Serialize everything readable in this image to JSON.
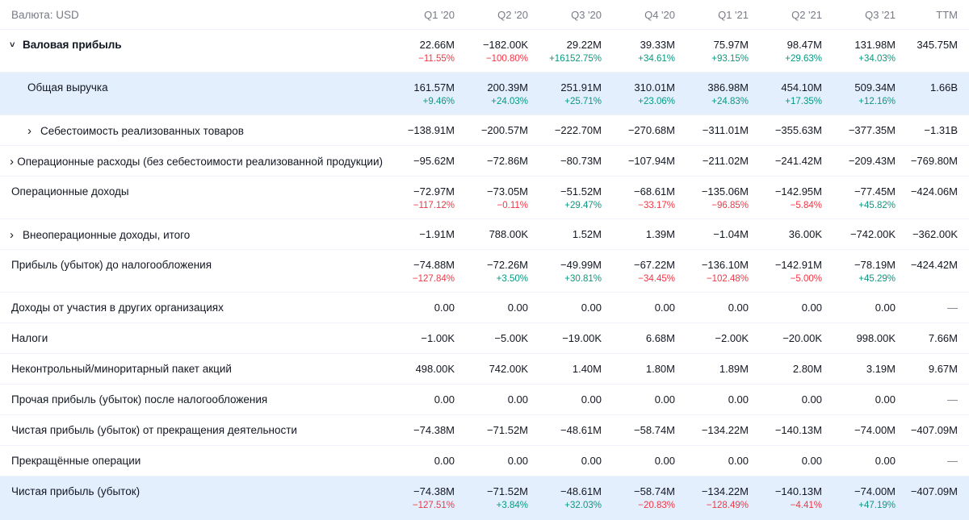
{
  "header": {
    "currency_label": "Валюта: USD",
    "periods": [
      "Q1 '20",
      "Q2 '20",
      "Q3 '20",
      "Q4 '20",
      "Q1 '21",
      "Q2 '21",
      "Q3 '21",
      "TTM"
    ]
  },
  "rows": [
    {
      "label": "Валовая прибыль",
      "expand": "down",
      "bold": true,
      "indent": 0,
      "highlight": false,
      "values": [
        "22.66M",
        "−182.00K",
        "29.22M",
        "39.33M",
        "75.97M",
        "98.47M",
        "131.98M",
        "345.75M"
      ],
      "changes": [
        "−11.55%",
        "−100.80%",
        "+16152.75%",
        "+34.61%",
        "+93.15%",
        "+29.63%",
        "+34.03%",
        ""
      ]
    },
    {
      "label": "Общая выручка",
      "expand": "",
      "bold": false,
      "indent": 1,
      "highlight": true,
      "values": [
        "161.57M",
        "200.39M",
        "251.91M",
        "310.01M",
        "386.98M",
        "454.10M",
        "509.34M",
        "1.66B"
      ],
      "changes": [
        "+9.46%",
        "+24.03%",
        "+25.71%",
        "+23.06%",
        "+24.83%",
        "+17.35%",
        "+12.16%",
        ""
      ]
    },
    {
      "label": "Себестоимость реализованных товаров",
      "expand": "right",
      "bold": false,
      "indent": 2,
      "highlight": false,
      "values": [
        "−138.91M",
        "−200.57M",
        "−222.70M",
        "−270.68M",
        "−311.01M",
        "−355.63M",
        "−377.35M",
        "−1.31B"
      ],
      "changes": []
    },
    {
      "label": "Операционные расходы (без себестоимости реализованной продукции)",
      "expand": "right",
      "bold": false,
      "indent": 0,
      "highlight": false,
      "values": [
        "−95.62M",
        "−72.86M",
        "−80.73M",
        "−107.94M",
        "−211.02M",
        "−241.42M",
        "−209.43M",
        "−769.80M"
      ],
      "changes": []
    },
    {
      "label": "Операционные доходы",
      "expand": "",
      "bold": false,
      "indent": 0,
      "highlight": false,
      "values": [
        "−72.97M",
        "−73.05M",
        "−51.52M",
        "−68.61M",
        "−135.06M",
        "−142.95M",
        "−77.45M",
        "−424.06M"
      ],
      "changes": [
        "−117.12%",
        "−0.11%",
        "+29.47%",
        "−33.17%",
        "−96.85%",
        "−5.84%",
        "+45.82%",
        ""
      ]
    },
    {
      "label": "Внеоперационные доходы, итого",
      "expand": "right",
      "bold": false,
      "indent": 0,
      "highlight": false,
      "values": [
        "−1.91M",
        "788.00K",
        "1.52M",
        "1.39M",
        "−1.04M",
        "36.00K",
        "−742.00K",
        "−362.00K"
      ],
      "changes": []
    },
    {
      "label": "Прибыль (убыток) до налогообложения",
      "expand": "",
      "bold": false,
      "indent": 0,
      "highlight": false,
      "values": [
        "−74.88M",
        "−72.26M",
        "−49.99M",
        "−67.22M",
        "−136.10M",
        "−142.91M",
        "−78.19M",
        "−424.42M"
      ],
      "changes": [
        "−127.84%",
        "+3.50%",
        "+30.81%",
        "−34.45%",
        "−102.48%",
        "−5.00%",
        "+45.29%",
        ""
      ]
    },
    {
      "label": "Доходы от участия в других организациях",
      "expand": "",
      "bold": false,
      "indent": 0,
      "highlight": false,
      "values": [
        "0.00",
        "0.00",
        "0.00",
        "0.00",
        "0.00",
        "0.00",
        "0.00",
        "—"
      ],
      "changes": []
    },
    {
      "label": "Налоги",
      "expand": "",
      "bold": false,
      "indent": 0,
      "highlight": false,
      "values": [
        "−1.00K",
        "−5.00K",
        "−19.00K",
        "6.68M",
        "−2.00K",
        "−20.00K",
        "998.00K",
        "7.66M"
      ],
      "changes": []
    },
    {
      "label": "Неконтрольный/миноритарный пакет акций",
      "expand": "",
      "bold": false,
      "indent": 0,
      "highlight": false,
      "values": [
        "498.00K",
        "742.00K",
        "1.40M",
        "1.80M",
        "1.89M",
        "2.80M",
        "3.19M",
        "9.67M"
      ],
      "changes": []
    },
    {
      "label": "Прочая прибыль (убыток) после налогообложения",
      "expand": "",
      "bold": false,
      "indent": 0,
      "highlight": false,
      "values": [
        "0.00",
        "0.00",
        "0.00",
        "0.00",
        "0.00",
        "0.00",
        "0.00",
        "—"
      ],
      "changes": []
    },
    {
      "label": "Чистая прибыль (убыток) от прекращения деятельности",
      "expand": "",
      "bold": false,
      "indent": 0,
      "highlight": false,
      "values": [
        "−74.38M",
        "−71.52M",
        "−48.61M",
        "−58.74M",
        "−134.22M",
        "−140.13M",
        "−74.00M",
        "−407.09M"
      ],
      "changes": []
    },
    {
      "label": "Прекращённые операции",
      "expand": "",
      "bold": false,
      "indent": 0,
      "highlight": false,
      "values": [
        "0.00",
        "0.00",
        "0.00",
        "0.00",
        "0.00",
        "0.00",
        "0.00",
        "—"
      ],
      "changes": []
    },
    {
      "label": "Чистая прибыль (убыток)",
      "expand": "",
      "bold": false,
      "indent": 0,
      "highlight": true,
      "values": [
        "−74.38M",
        "−71.52M",
        "−48.61M",
        "−58.74M",
        "−134.22M",
        "−140.13M",
        "−74.00M",
        "−407.09M"
      ],
      "changes": [
        "−127.51%",
        "+3.84%",
        "+32.03%",
        "−20.83%",
        "−128.49%",
        "−4.41%",
        "+47.19%",
        ""
      ]
    }
  ],
  "colors": {
    "positive": "#089981",
    "negative": "#f23645",
    "highlight": "#e3effd",
    "muted": "#787b86"
  }
}
